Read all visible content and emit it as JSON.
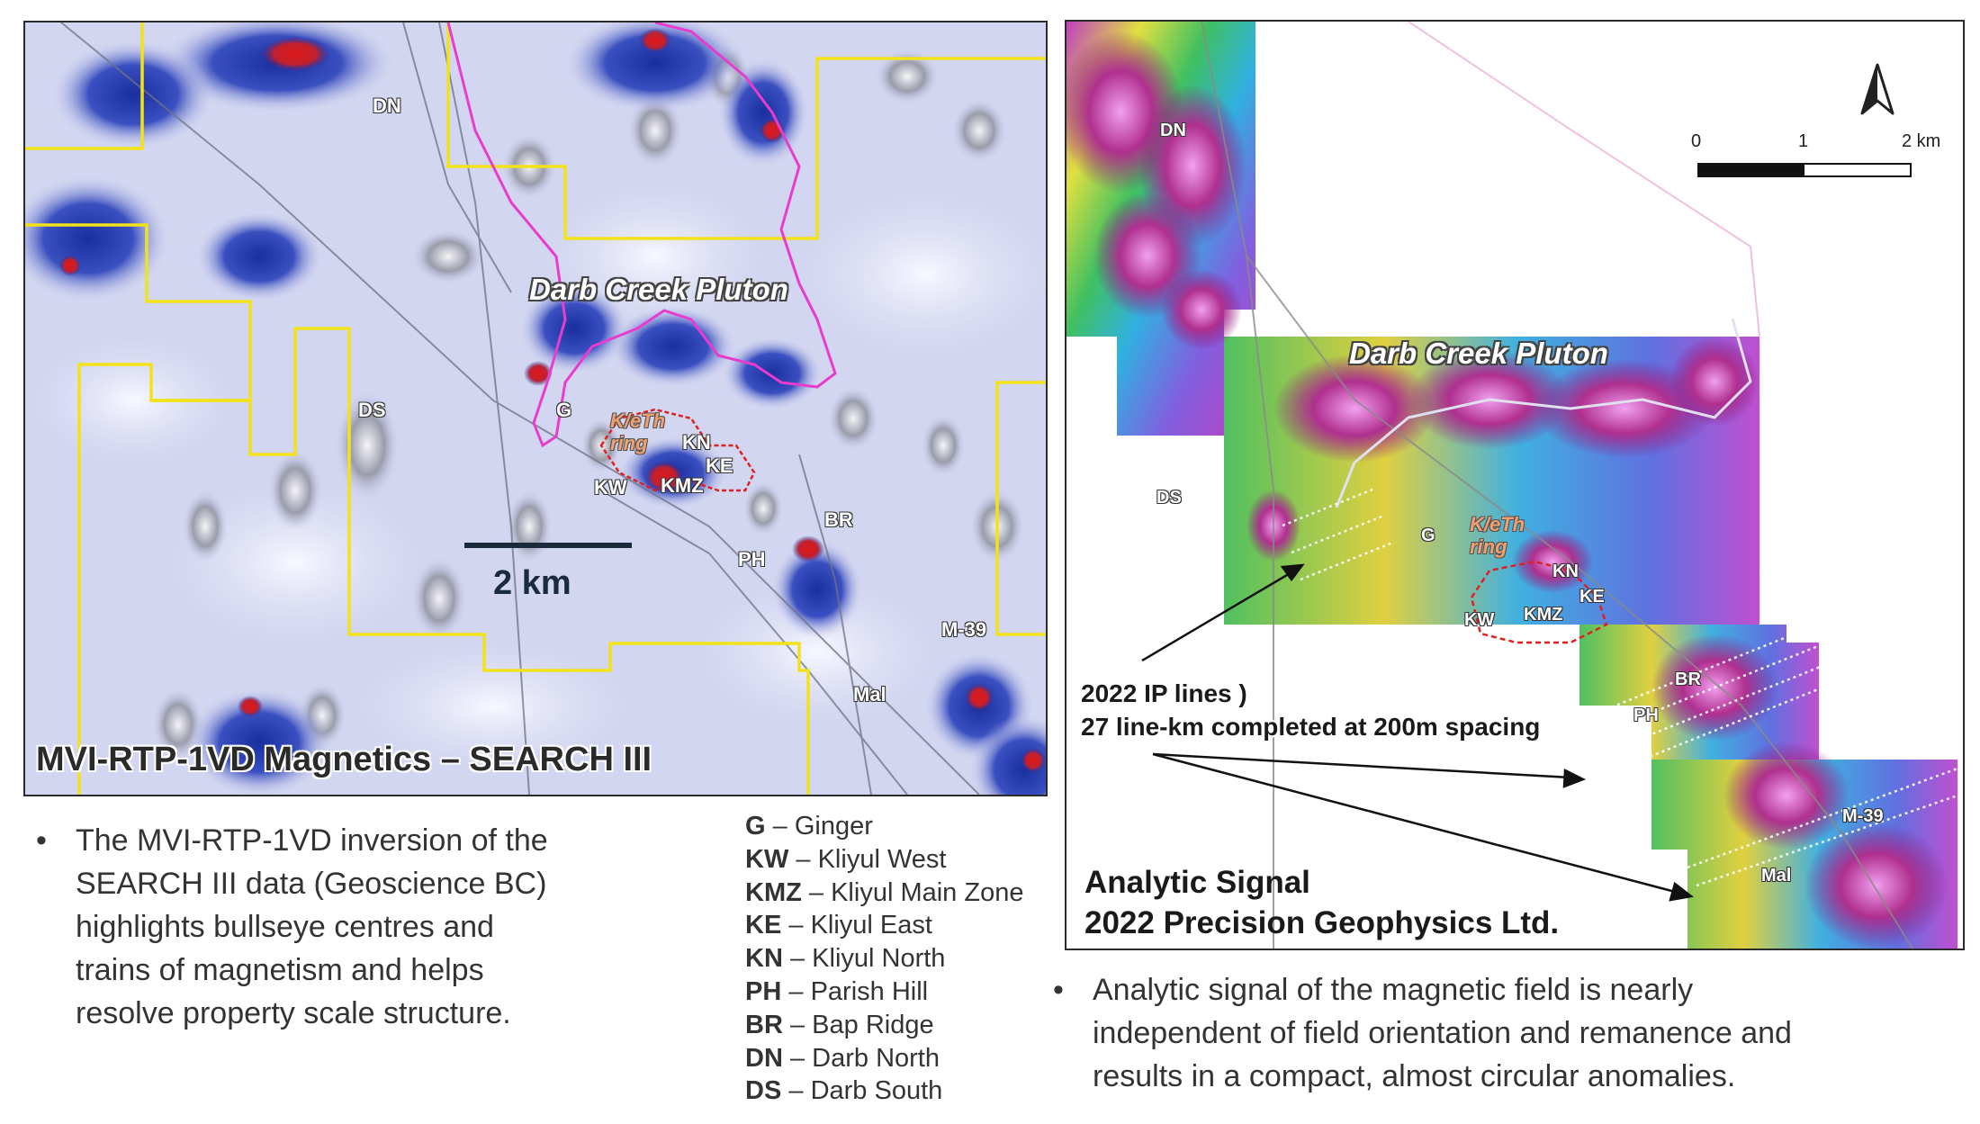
{
  "left_map": {
    "title": "MVI-RTP-1VD Magnetics – SEARCH III",
    "pluton_label": "Darb Creek Pluton",
    "ring_label_line1": "K/eTh",
    "ring_label_line2": "ring",
    "scale_label": "2 km",
    "labels": {
      "dn": "DN",
      "ds": "DS",
      "g": "G",
      "kn": "KN",
      "ke": "KE",
      "kw": "KW",
      "kmz": "KMZ",
      "br": "BR",
      "ph": "PH",
      "m39": "M-39",
      "mal": "Mal"
    }
  },
  "right_map": {
    "pluton_label": "Darb Creek Pluton",
    "ring_label_line1": "K/eTh",
    "ring_label_line2": "ring",
    "labels": {
      "dn": "DN",
      "ds": "DS",
      "g": "G",
      "kn": "KN",
      "ke": "KE",
      "kw": "KW",
      "kmz": "KMZ",
      "br": "BR",
      "ph": "PH",
      "m39": "M-39",
      "mal": "Mal"
    },
    "ip_lines_line1": "2022 IP lines )",
    "ip_lines_line2": "27 line-km completed at 200m spacing",
    "title_line1": "Analytic Signal",
    "title_line2": "2022 Precision Geophysics Ltd.",
    "scale_bar": {
      "tick0": "0",
      "tick1": "1",
      "tick2": "2 km"
    },
    "north_arrow_icon": "north-arrow-icon"
  },
  "left_bullet": {
    "lines": [
      "The MVI-RTP-1VD inversion of the",
      "SEARCH III data (Geoscience BC)",
      "highlights bullseye centres and",
      "trains of magnetism and helps",
      "resolve property scale structure."
    ]
  },
  "right_bullet": {
    "lines": [
      "Analytic signal of the magnetic field is nearly",
      "independent of field orientation and remanence and",
      "results in a compact, almost circular anomalies."
    ]
  },
  "legend": [
    {
      "code": "G",
      "name": "Ginger"
    },
    {
      "code": "KW",
      "name": "Kliyul West"
    },
    {
      "code": "KMZ",
      "name": "Kliyul Main Zone"
    },
    {
      "code": "KE",
      "name": "Kliyul East"
    },
    {
      "code": "KN",
      "name": "Kliyul North"
    },
    {
      "code": "PH",
      "name": "Parish Hill"
    },
    {
      "code": "BR",
      "name": "Bap Ridge"
    },
    {
      "code": "DN",
      "name": "Darb North"
    },
    {
      "code": "DS",
      "name": "Darb South"
    }
  ],
  "legend_separator": "–",
  "bullet_symbol": "•",
  "colors": {
    "claim_boundary": "#f2e21a",
    "pluton_outline": "#e83ccf",
    "ring_outline": "#e02020",
    "mag_high": "#1a2f9e",
    "mag_peak": "#d01818",
    "background_low": "#d4d8f2"
  }
}
